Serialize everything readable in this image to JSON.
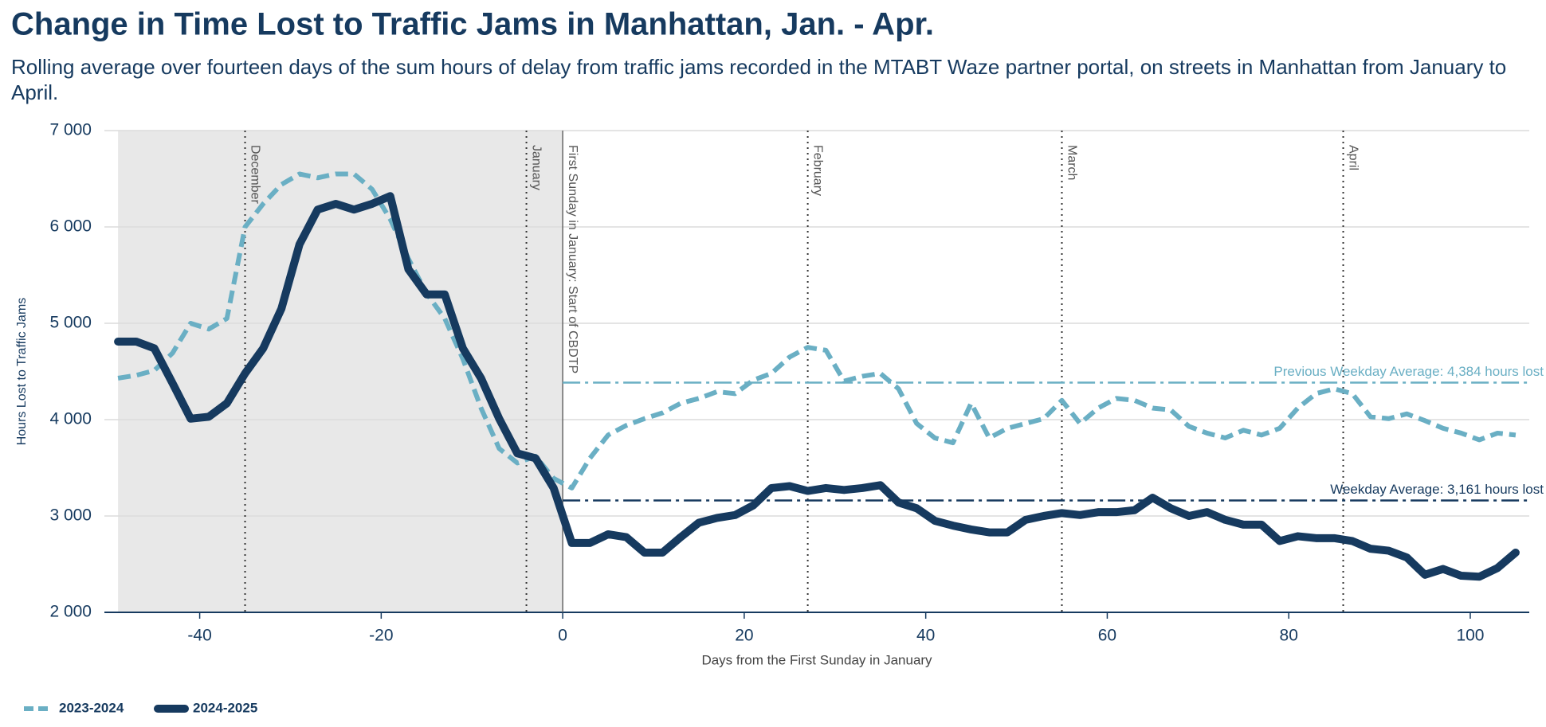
{
  "chart_data": {
    "type": "line",
    "title": "Change in Time Lost to Traffic Jams in Manhattan, Jan. - Apr.",
    "subtitle": "Rolling average over fourteen days of the sum hours of delay from traffic jams recorded in the MTABT Waze partner portal, on streets in Manhattan from January to April.",
    "x_label": "Days from the First Sunday in January",
    "y_label": "Hours Lost to Traffic Jams",
    "xlim": [
      -50.5,
      106.5
    ],
    "ylim": [
      2000,
      7000
    ],
    "xticks": [
      -40,
      -20,
      0,
      20,
      40,
      60,
      80,
      100
    ],
    "yticks": [
      {
        "value": 2000,
        "label": "2 000"
      },
      {
        "value": 3000,
        "label": "3 000"
      },
      {
        "value": 4000,
        "label": "4 000"
      },
      {
        "value": 5000,
        "label": "5 000"
      },
      {
        "value": 6000,
        "label": "6 000"
      },
      {
        "value": 7000,
        "label": "7 000"
      }
    ],
    "grid": true,
    "shaded_region": [
      -49,
      0
    ],
    "vlines": [
      {
        "x": -35,
        "label": "December"
      },
      {
        "x": -4,
        "label": "January"
      },
      {
        "x": 0,
        "label": "First Sunday in January: Start of CBDTP"
      },
      {
        "x": 27,
        "label": "February"
      },
      {
        "x": 55,
        "label": "March"
      },
      {
        "x": 86,
        "label": "April"
      }
    ],
    "hlines": [
      {
        "y": 4384,
        "label": "Previous Weekday Average: 4,384 hours lost",
        "color": "#6aafc4"
      },
      {
        "y": 3161,
        "label": "Weekday Average: 3,161 hours lost",
        "color": "#163a5f"
      }
    ],
    "legend": "bottom-left",
    "x": [
      -49,
      -47,
      -45,
      -43,
      -41,
      -39,
      -37,
      -35,
      -33,
      -31,
      -29,
      -27,
      -25,
      -23,
      -21,
      -19,
      -17,
      -15,
      -13,
      -11,
      -9,
      -7,
      -5,
      -3,
      -1,
      1,
      3,
      5,
      7,
      9,
      11,
      13,
      15,
      17,
      19,
      21,
      23,
      25,
      27,
      29,
      31,
      33,
      35,
      37,
      39,
      41,
      43,
      45,
      47,
      49,
      51,
      53,
      55,
      57,
      59,
      61,
      63,
      65,
      67,
      69,
      71,
      73,
      75,
      77,
      79,
      81,
      83,
      85,
      87,
      89,
      91,
      93,
      95,
      97,
      99,
      101,
      103,
      105
    ],
    "series": [
      {
        "name": "2023-2024",
        "color": "#6aafc4",
        "dashed": true,
        "values": [
          4430,
          4460,
          4510,
          4690,
          5000,
          4940,
          5050,
          6000,
          6240,
          6440,
          6550,
          6510,
          6550,
          6550,
          6390,
          6080,
          5670,
          5310,
          5050,
          4630,
          4120,
          3700,
          3550,
          3620,
          3390,
          3290,
          3600,
          3840,
          3940,
          4010,
          4070,
          4170,
          4220,
          4290,
          4270,
          4410,
          4480,
          4650,
          4750,
          4720,
          4400,
          4450,
          4480,
          4320,
          3960,
          3810,
          3760,
          4170,
          3810,
          3910,
          3960,
          4010,
          4200,
          3960,
          4120,
          4220,
          4200,
          4120,
          4100,
          3930,
          3860,
          3810,
          3890,
          3840,
          3910,
          4120,
          4270,
          4320,
          4270,
          4030,
          4010,
          4060,
          3990,
          3910,
          3860,
          3790,
          3860,
          3840
        ]
      },
      {
        "name": "2024-2025",
        "color": "#163a5f",
        "dashed": false,
        "values": [
          4810,
          4810,
          4740,
          4380,
          4010,
          4030,
          4170,
          4480,
          4740,
          5150,
          5820,
          6180,
          6240,
          6180,
          6240,
          6320,
          5560,
          5300,
          5300,
          4740,
          4430,
          4010,
          3650,
          3600,
          3290,
          2720,
          2720,
          2810,
          2780,
          2620,
          2620,
          2780,
          2930,
          2980,
          3010,
          3110,
          3290,
          3310,
          3260,
          3290,
          3270,
          3290,
          3320,
          3140,
          3080,
          2950,
          2900,
          2860,
          2830,
          2830,
          2960,
          3000,
          3030,
          3010,
          3040,
          3040,
          3060,
          3190,
          3080,
          3000,
          3040,
          2960,
          2910,
          2910,
          2740,
          2790,
          2770,
          2770,
          2740,
          2660,
          2640,
          2570,
          2390,
          2450,
          2380,
          2370,
          2460,
          2620
        ]
      }
    ]
  }
}
